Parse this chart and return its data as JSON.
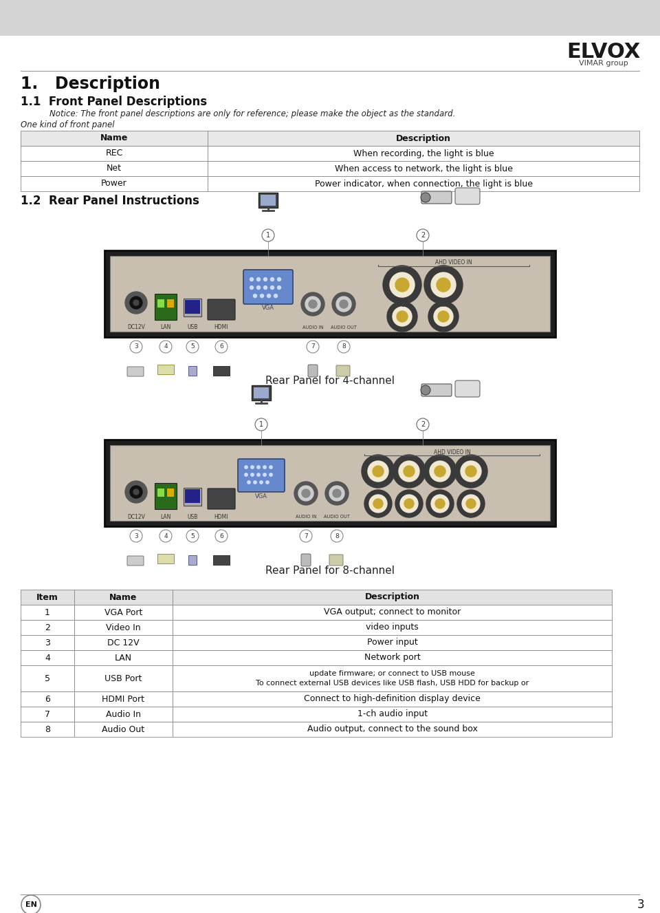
{
  "page_bg": "#ffffff",
  "header_bg": "#d4d4d4",
  "title_main": "1.   Description",
  "title_11": "1.1  Front Panel Descriptions",
  "notice_text": "Notice: The front panel descriptions are only for reference; please make the object as the standard.",
  "front_panel_label": "One kind of front panel",
  "front_panel_headers": [
    "Name",
    "Description"
  ],
  "front_panel_rows": [
    [
      "REC",
      "When recording, the light is blue"
    ],
    [
      "Net",
      "When access to network, the light is blue"
    ],
    [
      "Power",
      "Power indicator, when connection, the light is blue"
    ]
  ],
  "title_12": "1.2  Rear Panel Instructions",
  "caption_4ch": "Rear Panel for 4-channel",
  "caption_8ch": "Rear Panel for 8-channel",
  "rear_table_headers": [
    "Item",
    "Name",
    "Description"
  ],
  "rear_table_rows": [
    [
      "1",
      "VGA Port",
      "VGA output; connect to monitor"
    ],
    [
      "2",
      "Video In",
      "video inputs"
    ],
    [
      "3",
      "DC 12V",
      "Power input"
    ],
    [
      "4",
      "LAN",
      "Network port"
    ],
    [
      "5",
      "USB Port",
      "To connect external USB devices like USB flash, USB HDD for backup or\nupdate firmware; or connect to USB mouse"
    ],
    [
      "6",
      "HDMI Port",
      "Connect to high-definition display device"
    ],
    [
      "7",
      "Audio In",
      "1-ch audio input"
    ],
    [
      "8",
      "Audio Out",
      "Audio output, connect to the sound box"
    ]
  ],
  "footer_text": "3",
  "footer_label": "EN",
  "elvox_text": "ELVOX",
  "vimar_text": "VIMAR group",
  "panel_bg": "#c8bfb0",
  "panel_outer": "#1e1e1e",
  "connector_dark": "#3a3a3a",
  "connector_gold": "#c8a830",
  "connector_ring": "#f0e8d0"
}
